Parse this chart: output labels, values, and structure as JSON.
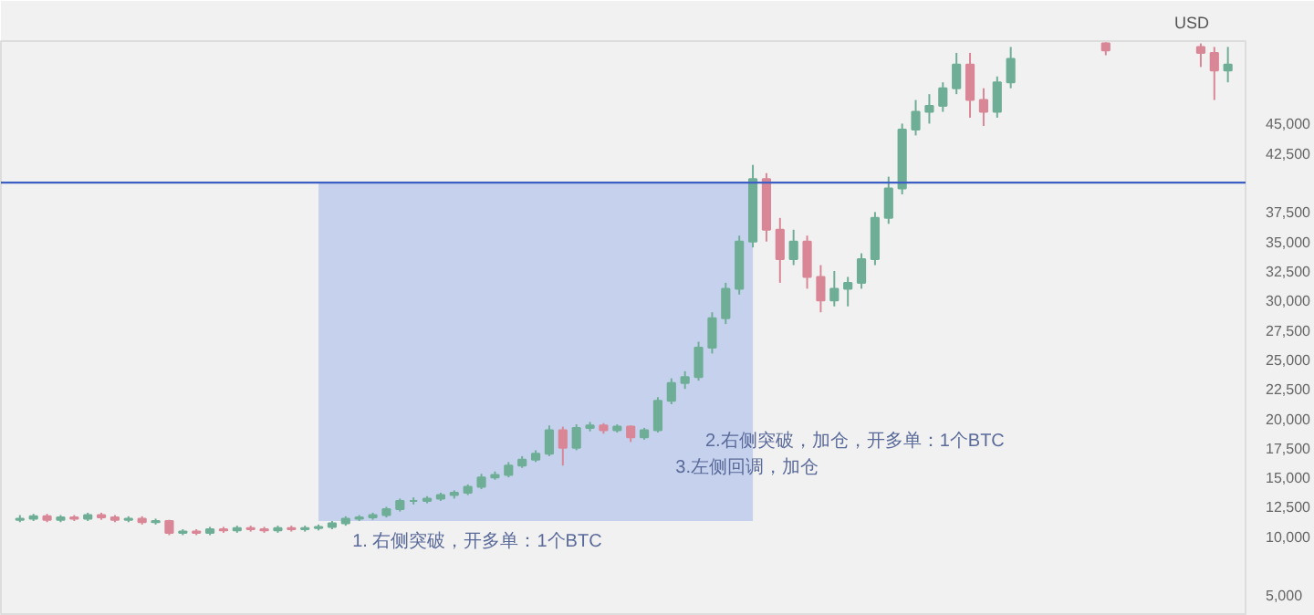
{
  "chart_data": {
    "type": "candlestick",
    "ylabel": "USD",
    "categories": [
      null,
      null,
      null,
      null,
      null,
      null,
      null,
      null,
      null,
      null,
      null,
      null,
      null,
      null,
      null,
      null,
      null,
      null,
      null,
      null,
      null,
      null,
      null,
      null,
      null,
      null,
      null,
      null,
      null,
      null,
      null,
      null,
      null,
      null,
      null,
      null,
      null,
      null,
      null,
      null,
      null,
      null,
      null,
      null,
      null,
      null,
      null,
      null,
      null,
      null,
      null,
      null,
      null,
      null,
      null,
      null,
      null,
      null,
      null,
      null,
      null,
      null,
      null,
      null,
      null,
      null,
      null,
      null,
      null,
      null,
      null,
      null,
      null,
      null,
      null,
      null,
      null,
      null,
      null,
      null,
      null,
      null,
      null,
      null,
      null,
      null,
      null,
      null,
      null,
      null
    ],
    "ohlc": [
      [
        11400,
        11800,
        11200,
        11500
      ],
      [
        11500,
        11900,
        11300,
        11700
      ],
      [
        11700,
        11900,
        11200,
        11400
      ],
      [
        11400,
        11800,
        11200,
        11600
      ],
      [
        11600,
        11800,
        11300,
        11500
      ],
      [
        11500,
        12000,
        11300,
        11800
      ],
      [
        11800,
        12000,
        11400,
        11600
      ],
      [
        11600,
        11800,
        11200,
        11400
      ],
      [
        11400,
        11700,
        11200,
        11500
      ],
      [
        11500,
        11700,
        11000,
        11200
      ],
      [
        11200,
        11500,
        11000,
        11300
      ],
      [
        11300,
        11400,
        10100,
        10300
      ],
      [
        10300,
        10600,
        10100,
        10400
      ],
      [
        10400,
        10600,
        10100,
        10300
      ],
      [
        10300,
        10800,
        10100,
        10600
      ],
      [
        10600,
        10800,
        10300,
        10500
      ],
      [
        10500,
        10900,
        10300,
        10700
      ],
      [
        10700,
        10900,
        10400,
        10600
      ],
      [
        10600,
        10800,
        10300,
        10500
      ],
      [
        10500,
        10900,
        10300,
        10700
      ],
      [
        10700,
        10900,
        10400,
        10600
      ],
      [
        10600,
        10900,
        10400,
        10700
      ],
      [
        10700,
        11000,
        10500,
        10800
      ],
      [
        10800,
        11300,
        10600,
        11100
      ],
      [
        11100,
        11700,
        10900,
        11500
      ],
      [
        11500,
        11800,
        11300,
        11600
      ],
      [
        11600,
        12000,
        11400,
        11800
      ],
      [
        11800,
        12500,
        11600,
        12300
      ],
      [
        12300,
        13200,
        12100,
        13000
      ],
      [
        13000,
        13300,
        12700,
        13000
      ],
      [
        13000,
        13400,
        12800,
        13200
      ],
      [
        13200,
        13700,
        13000,
        13500
      ],
      [
        13500,
        13900,
        13200,
        13700
      ],
      [
        13700,
        14400,
        13500,
        14200
      ],
      [
        14200,
        15300,
        14000,
        15000
      ],
      [
        15000,
        15500,
        14800,
        15200
      ],
      [
        15200,
        16300,
        15000,
        16000
      ],
      [
        16000,
        16800,
        15800,
        16500
      ],
      [
        16500,
        17300,
        16300,
        17000
      ],
      [
        17000,
        19400,
        16800,
        19000
      ],
      [
        19000,
        19300,
        16000,
        17500
      ],
      [
        17500,
        19500,
        17300,
        19200
      ],
      [
        19200,
        19700,
        18900,
        19400
      ],
      [
        19400,
        19600,
        18700,
        19000
      ],
      [
        19000,
        19500,
        18800,
        19300
      ],
      [
        19300,
        19400,
        18000,
        18400
      ],
      [
        18400,
        19200,
        18200,
        19000
      ],
      [
        19000,
        21800,
        18800,
        21500
      ],
      [
        21500,
        23400,
        21200,
        23000
      ],
      [
        23000,
        24000,
        22500,
        23500
      ],
      [
        23500,
        26500,
        23200,
        26000
      ],
      [
        26000,
        29000,
        25500,
        28500
      ],
      [
        28500,
        31500,
        28000,
        31000
      ],
      [
        31000,
        35500,
        30500,
        35000
      ],
      [
        35000,
        41500,
        34500,
        40300
      ],
      [
        40300,
        40800,
        35000,
        36000
      ],
      [
        36000,
        37000,
        31500,
        33500
      ],
      [
        33500,
        36000,
        33000,
        35000
      ],
      [
        35000,
        35500,
        31000,
        32000
      ],
      [
        32000,
        33000,
        29000,
        30000
      ],
      [
        30000,
        32500,
        29500,
        31000
      ],
      [
        31000,
        32000,
        29500,
        31500
      ],
      [
        31500,
        34000,
        31000,
        33500
      ],
      [
        33500,
        37500,
        33000,
        37000
      ],
      [
        37000,
        40500,
        36500,
        39500
      ],
      [
        39500,
        45000,
        39000,
        44500
      ],
      [
        44500,
        47000,
        44000,
        46000
      ],
      [
        46000,
        47500,
        45000,
        46500
      ],
      [
        46500,
        48500,
        46000,
        48000
      ],
      [
        48000,
        51000,
        47500,
        50000
      ],
      [
        50000,
        51000,
        45500,
        47000
      ],
      [
        47000,
        48000,
        44800,
        46000
      ],
      [
        46000,
        49000,
        45500,
        48500
      ],
      [
        48500,
        51500,
        48000,
        50500
      ],
      null,
      null,
      null,
      null,
      null,
      null,
      [
        51800,
        51900,
        50800,
        51200
      ],
      null,
      null,
      null,
      null,
      null,
      null,
      [
        51500,
        51800,
        49800,
        51000
      ],
      [
        51000,
        51500,
        47000,
        49500
      ],
      [
        49500,
        51500,
        48500,
        50000
      ]
    ],
    "colors": [
      "#6fae96",
      "#6fae96",
      "#d98696",
      "#6fae96",
      "#d98696",
      "#6fae96",
      "#d98696",
      "#d98696",
      "#6fae96",
      "#d98696",
      "#6fae96",
      "#d98696",
      "#6fae96",
      "#d98696",
      "#6fae96",
      "#d98696",
      "#6fae96",
      "#d98696",
      "#d98696",
      "#6fae96",
      "#d98696",
      "#6fae96",
      "#6fae96",
      "#6fae96",
      "#6fae96",
      "#6fae96",
      "#6fae96",
      "#6fae96",
      "#6fae96",
      "#6fae96",
      "#6fae96",
      "#6fae96",
      "#6fae96",
      "#6fae96",
      "#6fae96",
      "#6fae96",
      "#6fae96",
      "#6fae96",
      "#6fae96",
      "#6fae96",
      "#d98696",
      "#6fae96",
      "#6fae96",
      "#d98696",
      "#6fae96",
      "#d98696",
      "#6fae96",
      "#6fae96",
      "#6fae96",
      "#6fae96",
      "#6fae96",
      "#6fae96",
      "#6fae96",
      "#6fae96",
      "#6fae96",
      "#d98696",
      "#d98696",
      "#6fae96",
      "#d98696",
      "#d98696",
      "#6fae96",
      "#6fae96",
      "#6fae96",
      "#6fae96",
      "#6fae96",
      "#6fae96",
      "#6fae96",
      "#6fae96",
      "#6fae96",
      "#6fae96",
      "#d98696",
      "#d98696",
      "#6fae96",
      "#6fae96",
      null,
      null,
      null,
      null,
      null,
      null,
      "#d98696",
      null,
      null,
      null,
      null,
      null,
      null,
      "#d98696",
      "#d98696",
      "#6fae96"
    ],
    "ylim": [
      3250,
      52000
    ],
    "yticks": [
      {
        "value": 5000,
        "label": "5,000"
      },
      {
        "value": 10000,
        "label": "10,000"
      },
      {
        "value": 12500,
        "label": "12,500"
      },
      {
        "value": 15000,
        "label": "15,000"
      },
      {
        "value": 17500,
        "label": "17,500"
      },
      {
        "value": 20000,
        "label": "20,000"
      },
      {
        "value": 22500,
        "label": "22,500"
      },
      {
        "value": 25000,
        "label": "25,000"
      },
      {
        "value": 27500,
        "label": "27,500"
      },
      {
        "value": 30000,
        "label": "30,000"
      },
      {
        "value": 32500,
        "label": "32,500"
      },
      {
        "value": 35000,
        "label": "35,000"
      },
      {
        "value": 37500,
        "label": "37,500"
      },
      {
        "value": 42500,
        "label": "42,500"
      },
      {
        "value": 45000,
        "label": "45,000"
      }
    ],
    "ref_lines": [
      {
        "axis": "y",
        "value": 40000,
        "color": "#3d5fc4"
      }
    ],
    "annotations": [
      "1. 右侧突破，开多单：1个BTC",
      "2.右侧突破，加仓，开多单：1个BTC",
      "3.左侧回调，加仓"
    ]
  }
}
